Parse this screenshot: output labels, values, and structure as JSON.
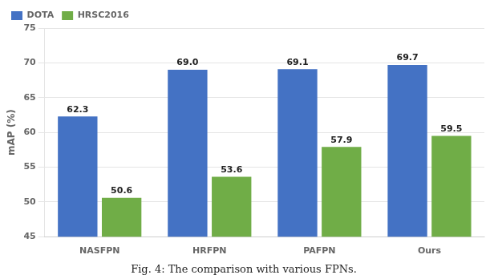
{
  "chart_data": {
    "type": "bar",
    "caption": "Fig. 4: The comparison with various FPNs.",
    "y_label": "mAP (%)",
    "categories": [
      "NASFPN",
      "HRFPN",
      "PAFPN",
      "Ours"
    ],
    "series": [
      {
        "name": "DOTA",
        "color": "#4472C4",
        "values": [
          62.3,
          69.0,
          69.1,
          69.7
        ],
        "value_labels": [
          "62.3",
          "69.0",
          "69.1",
          "69.7"
        ]
      },
      {
        "name": "HRSC2016",
        "color": "#70AD47",
        "values": [
          50.6,
          53.6,
          57.9,
          59.5
        ],
        "value_labels": [
          "50.6",
          "53.6",
          "57.9",
          "59.5"
        ]
      }
    ],
    "ylim": [
      45,
      75
    ],
    "yticks": [
      45,
      50,
      55,
      60,
      65,
      70,
      75
    ],
    "grid": true,
    "legend": "upper left",
    "data_labels": true
  }
}
